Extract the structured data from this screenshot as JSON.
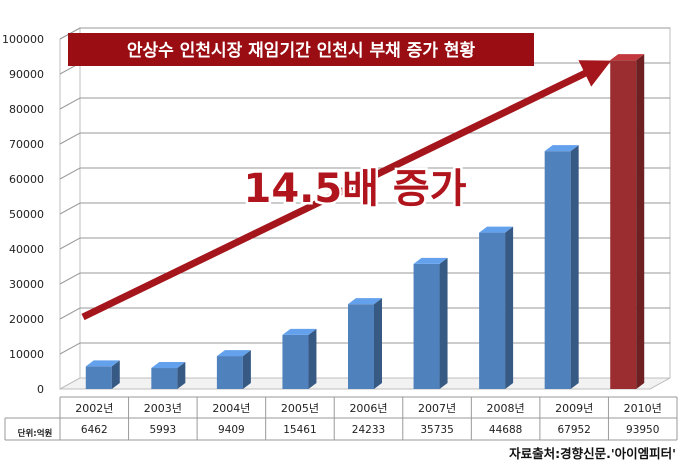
{
  "chart_data": {
    "type": "bar",
    "title": "안상수 인천시장 재임기간 인천시 부채 증가 현황",
    "categories": [
      "2002년",
      "2003년",
      "2004년",
      "2005년",
      "2006년",
      "2007년",
      "2008년",
      "2009년",
      "2010년"
    ],
    "values": [
      6462,
      5993,
      9409,
      15461,
      24233,
      35735,
      44688,
      67952,
      93950
    ],
    "value_labels": [
      "6462",
      "5993",
      "9409",
      "15461",
      "24233",
      "35735",
      "44688",
      "67952",
      "93950"
    ],
    "yticks": [
      "0",
      "10000",
      "20000",
      "30000",
      "40000",
      "50000",
      "60000",
      "70000",
      "80000",
      "90000",
      "100000"
    ],
    "ylim": [
      0,
      100000
    ],
    "grid": true,
    "bar_color": "#4f81bd",
    "highlight_bar_color": "#9b2d30",
    "annotation": "14.5배 증가",
    "arrow_color": "#a5161c",
    "title_bg_color": "#9a0d12",
    "unit_label": "단위:억원",
    "source": "자료출처:경향신문.'아이엠피터'"
  }
}
